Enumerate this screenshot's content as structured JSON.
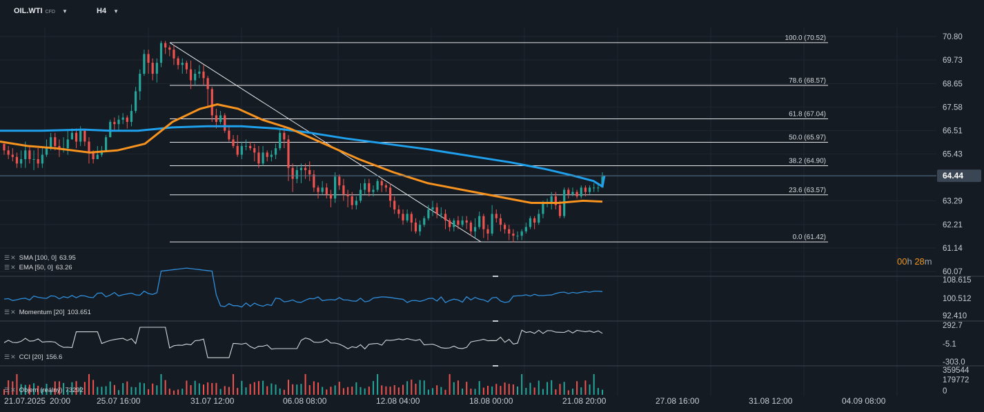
{
  "header": {
    "symbol": "OIL.WTI",
    "symbol_tag": "CFD",
    "timeframe": "H4"
  },
  "countdown": {
    "hours": "00",
    "hours_unit": "h",
    "minutes": "28",
    "minutes_unit": "m"
  },
  "legends": {
    "sma": "SMA [100, 0]",
    "sma_value": "63.95",
    "ema": "EMA [50, 0]",
    "ema_value": "63.26",
    "momentum": "Momentum [20]",
    "momentum_value": "103.651",
    "cci": "CCI [20]",
    "cci_value": "156.6",
    "volume": "Objem (reálný)",
    "volume_value": "73292"
  },
  "colors": {
    "up": "#26a69a",
    "down": "#ef5350",
    "sma": "#1ea0ec",
    "ema": "#f7931e",
    "momentum": "#2f8fdc",
    "cci": "#d5d9de",
    "volume_up": "#26a69a",
    "volume_down": "#ef5350",
    "price_tag_bg": "#3b4654"
  },
  "chart_data": {
    "type": "candlestick",
    "price_axis": {
      "ticks": [
        "70.80",
        "69.73",
        "68.65",
        "67.58",
        "66.51",
        "65.43",
        "64.44",
        "63.29",
        "62.21",
        "61.14",
        "60.07"
      ],
      "current_price": "64.44",
      "range": [
        60.07,
        70.8
      ]
    },
    "time_axis": {
      "labels": [
        "21.07.2025",
        "20:00",
        "25.07 16:00",
        "31.07 12:00",
        "06.08 08:00",
        "12.08 04:00",
        "18.08 00:00",
        "21.08 20:00",
        "27.08 16:00",
        "31.08 12:00",
        "04.09 08:00"
      ]
    },
    "fibonacci": [
      {
        "level": "100.0",
        "price": "70.52"
      },
      {
        "level": "78.6",
        "price": "68.57"
      },
      {
        "level": "61.8",
        "price": "67.04"
      },
      {
        "level": "50.0",
        "price": "65.97"
      },
      {
        "level": "38.2",
        "price": "64.90"
      },
      {
        "level": "23.6",
        "price": "63.57"
      },
      {
        "level": "0.0",
        "price": "61.42"
      }
    ],
    "candles": [
      [
        65.9,
        65.6,
        65.4,
        65.9
      ],
      [
        65.6,
        65.4,
        65.2,
        65.8
      ],
      [
        65.4,
        65.3,
        65.1,
        65.7
      ],
      [
        65.3,
        65.0,
        64.8,
        65.5
      ],
      [
        65.0,
        65.2,
        64.8,
        65.6
      ],
      [
        65.2,
        65.6,
        64.8,
        66.0
      ],
      [
        65.6,
        65.2,
        65.0,
        65.8
      ],
      [
        65.2,
        65.2,
        64.7,
        65.6
      ],
      [
        65.2,
        65.0,
        64.8,
        65.7
      ],
      [
        65.0,
        65.4,
        64.8,
        65.7
      ],
      [
        65.4,
        65.7,
        65.3,
        66.1
      ],
      [
        65.7,
        66.2,
        65.6,
        66.4
      ],
      [
        66.2,
        65.8,
        65.6,
        66.4
      ],
      [
        65.8,
        65.7,
        65.3,
        66.1
      ],
      [
        65.7,
        65.7,
        65.5,
        66.2
      ],
      [
        65.7,
        66.1,
        65.4,
        66.5
      ],
      [
        66.1,
        66.4,
        66.1,
        66.6
      ],
      [
        66.4,
        66.0,
        65.7,
        66.6
      ],
      [
        66.0,
        66.5,
        65.8,
        66.7
      ],
      [
        66.5,
        66.0,
        65.8,
        66.6
      ],
      [
        66.0,
        65.5,
        65.0,
        66.2
      ],
      [
        65.5,
        65.2,
        65.0,
        65.6
      ],
      [
        65.2,
        65.4,
        65.2,
        65.8
      ],
      [
        65.4,
        65.6,
        65.3,
        65.8
      ],
      [
        65.6,
        66.2,
        65.6,
        66.3
      ],
      [
        66.2,
        66.9,
        66.2,
        67.0
      ],
      [
        66.9,
        66.8,
        66.5,
        67.1
      ],
      [
        66.8,
        67.0,
        66.5,
        67.2
      ],
      [
        67.0,
        67.1,
        66.8,
        67.3
      ],
      [
        67.1,
        66.9,
        66.6,
        67.2
      ],
      [
        66.9,
        67.4,
        66.7,
        67.7
      ],
      [
        67.4,
        68.3,
        67.3,
        68.5
      ],
      [
        68.3,
        69.1,
        67.9,
        69.3
      ],
      [
        69.1,
        70.0,
        69.0,
        70.2
      ],
      [
        70.0,
        69.6,
        69.1,
        70.2
      ],
      [
        69.6,
        69.1,
        68.8,
        69.8
      ],
      [
        69.1,
        69.6,
        68.7,
        69.8
      ],
      [
        69.6,
        70.5,
        69.4,
        70.6
      ],
      [
        70.5,
        70.3,
        70.0,
        70.6
      ],
      [
        70.3,
        70.2,
        69.9,
        70.4
      ],
      [
        70.2,
        69.8,
        69.5,
        70.4
      ],
      [
        69.8,
        69.5,
        69.3,
        69.9
      ],
      [
        69.5,
        69.6,
        69.1,
        69.8
      ],
      [
        69.6,
        69.3,
        69.1,
        69.7
      ],
      [
        69.3,
        68.8,
        68.4,
        69.7
      ],
      [
        68.8,
        69.1,
        68.6,
        69.3
      ],
      [
        69.1,
        69.2,
        68.9,
        69.5
      ],
      [
        69.2,
        68.9,
        68.6,
        69.5
      ],
      [
        68.9,
        68.4,
        67.6,
        69.0
      ],
      [
        68.4,
        67.2,
        66.9,
        68.5
      ],
      [
        67.2,
        66.9,
        66.6,
        67.5
      ],
      [
        66.9,
        67.2,
        66.8,
        67.4
      ],
      [
        67.2,
        66.5,
        66.4,
        67.3
      ],
      [
        66.5,
        66.1,
        66.0,
        66.7
      ],
      [
        66.1,
        65.8,
        65.7,
        66.3
      ],
      [
        65.8,
        65.4,
        65.3,
        66.3
      ],
      [
        65.4,
        65.8,
        65.2,
        66.0
      ],
      [
        65.8,
        65.8,
        65.6,
        66.1
      ],
      [
        65.8,
        65.7,
        65.6,
        66.0
      ],
      [
        65.7,
        65.5,
        65.1,
        65.9
      ],
      [
        65.5,
        65.0,
        64.8,
        65.8
      ],
      [
        65.0,
        65.5,
        64.9,
        65.8
      ],
      [
        65.5,
        65.3,
        65.1,
        65.6
      ],
      [
        65.3,
        65.4,
        65.1,
        65.6
      ],
      [
        65.4,
        65.7,
        65.2,
        65.9
      ],
      [
        65.7,
        66.4,
        65.6,
        66.6
      ],
      [
        66.4,
        66.1,
        65.7,
        66.7
      ],
      [
        66.1,
        64.8,
        64.2,
        66.3
      ],
      [
        64.8,
        64.3,
        63.7,
        65.0
      ],
      [
        64.3,
        64.7,
        64.1,
        64.9
      ],
      [
        64.7,
        64.8,
        64.1,
        65.0
      ],
      [
        64.8,
        64.7,
        64.3,
        65.0
      ],
      [
        64.7,
        64.5,
        64.2,
        65.1
      ],
      [
        64.5,
        63.9,
        63.7,
        64.7
      ],
      [
        63.9,
        63.7,
        63.4,
        64.0
      ],
      [
        63.7,
        63.9,
        63.6,
        64.2
      ],
      [
        63.9,
        63.6,
        63.4,
        64.1
      ],
      [
        63.6,
        63.4,
        63.0,
        63.8
      ],
      [
        63.4,
        64.4,
        63.2,
        64.6
      ],
      [
        64.4,
        64.0,
        63.8,
        64.5
      ],
      [
        64.0,
        63.6,
        63.3,
        64.3
      ],
      [
        63.6,
        63.5,
        63.0,
        63.8
      ],
      [
        63.5,
        63.1,
        62.9,
        63.7
      ],
      [
        63.1,
        63.3,
        62.9,
        63.5
      ],
      [
        63.3,
        63.8,
        63.2,
        64.1
      ],
      [
        63.8,
        64.1,
        63.6,
        64.3
      ],
      [
        64.1,
        63.7,
        63.5,
        64.3
      ],
      [
        63.7,
        63.8,
        63.5,
        64.0
      ],
      [
        63.8,
        64.2,
        63.7,
        64.3
      ],
      [
        64.2,
        64.0,
        63.7,
        64.3
      ],
      [
        64.0,
        63.9,
        63.7,
        64.1
      ],
      [
        63.9,
        63.3,
        63.0,
        64.1
      ],
      [
        63.3,
        62.9,
        62.7,
        63.5
      ],
      [
        62.9,
        62.7,
        62.5,
        63.1
      ],
      [
        62.7,
        62.4,
        62.2,
        62.9
      ],
      [
        62.4,
        62.7,
        62.3,
        62.9
      ],
      [
        62.7,
        62.3,
        61.9,
        62.8
      ],
      [
        62.3,
        61.9,
        61.8,
        62.5
      ],
      [
        61.9,
        62.2,
        61.7,
        62.4
      ],
      [
        62.2,
        62.5,
        62.1,
        62.6
      ],
      [
        62.5,
        62.9,
        62.4,
        63.1
      ],
      [
        62.9,
        63.0,
        62.6,
        63.3
      ],
      [
        63.0,
        62.7,
        62.5,
        63.2
      ],
      [
        62.7,
        62.7,
        62.5,
        63.0
      ],
      [
        62.7,
        62.4,
        62.0,
        62.9
      ],
      [
        62.4,
        62.1,
        61.9,
        62.5
      ],
      [
        62.1,
        62.4,
        61.9,
        62.5
      ],
      [
        62.4,
        62.2,
        62.0,
        62.6
      ],
      [
        62.2,
        62.4,
        62.1,
        62.6
      ],
      [
        62.4,
        62.3,
        62.0,
        62.6
      ],
      [
        62.3,
        61.9,
        61.7,
        62.4
      ],
      [
        61.9,
        62.1,
        61.6,
        62.5
      ],
      [
        62.1,
        62.6,
        62.0,
        62.8
      ],
      [
        62.6,
        62.0,
        61.6,
        62.7
      ],
      [
        62.0,
        61.8,
        61.5,
        62.2
      ],
      [
        61.8,
        62.7,
        61.7,
        63.1
      ],
      [
        62.7,
        62.5,
        62.3,
        62.9
      ],
      [
        62.5,
        62.2,
        61.9,
        62.7
      ],
      [
        62.2,
        62.0,
        61.8,
        62.3
      ],
      [
        62.0,
        61.8,
        61.5,
        62.2
      ],
      [
        61.8,
        61.7,
        61.4,
        62.0
      ],
      [
        61.7,
        61.7,
        61.5,
        61.9
      ],
      [
        61.7,
        61.9,
        61.5,
        62.0
      ],
      [
        61.9,
        62.1,
        61.8,
        62.3
      ],
      [
        62.1,
        62.5,
        62.0,
        62.6
      ],
      [
        62.5,
        62.3,
        62.0,
        62.6
      ],
      [
        62.3,
        62.7,
        62.2,
        62.9
      ],
      [
        62.7,
        63.2,
        62.5,
        63.3
      ],
      [
        63.2,
        63.2,
        63.0,
        63.4
      ],
      [
        63.2,
        63.5,
        62.9,
        63.7
      ],
      [
        63.5,
        63.1,
        62.9,
        63.7
      ],
      [
        63.1,
        62.6,
        62.5,
        63.3
      ],
      [
        62.6,
        63.8,
        62.5,
        63.9
      ],
      [
        63.8,
        63.6,
        63.4,
        63.9
      ],
      [
        63.6,
        63.7,
        63.5,
        63.9
      ],
      [
        63.7,
        63.5,
        63.4,
        63.8
      ],
      [
        63.5,
        63.9,
        63.4,
        64.0
      ],
      [
        63.9,
        63.7,
        63.5,
        64.0
      ],
      [
        63.7,
        63.9,
        63.6,
        64.0
      ],
      [
        63.9,
        63.9,
        63.7,
        64.1
      ],
      [
        63.9,
        63.9,
        63.7,
        64.1
      ],
      [
        63.9,
        64.4,
        63.9,
        64.6
      ]
    ],
    "sma100": {
      "start": 66.5,
      "end": 63.95
    },
    "ema50": {
      "start": 66.3,
      "end": 63.26
    },
    "momentum": {
      "axis": [
        "108.615",
        "100.512",
        "92.410"
      ],
      "last": 103.651
    },
    "cci": {
      "axis": [
        "292.7",
        "-5.1",
        "-303.0"
      ],
      "last": 156.6
    },
    "volume": {
      "axis": [
        "359544",
        "179772",
        "0"
      ],
      "last": 73292
    }
  }
}
